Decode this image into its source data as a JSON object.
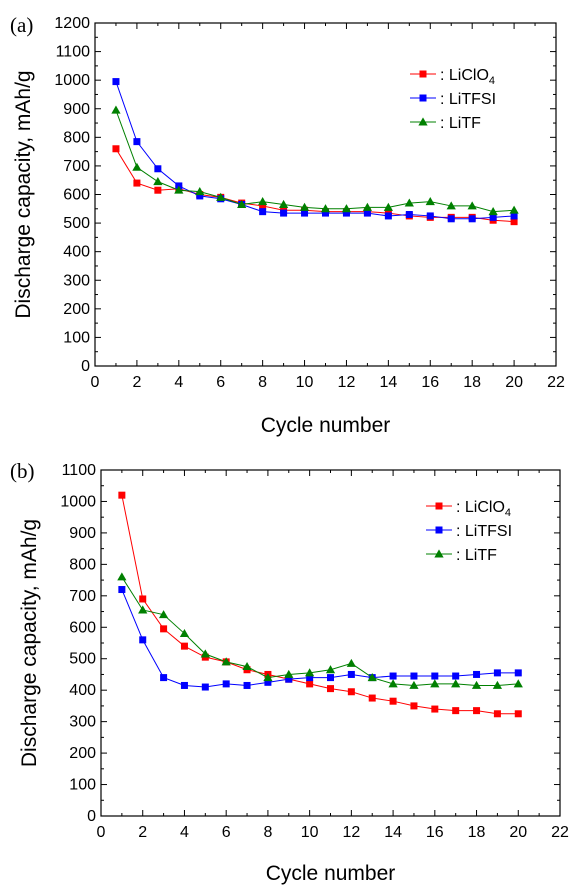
{
  "chart_data": [
    {
      "panel_label": "(a)",
      "type": "line",
      "xlabel": "Cycle number",
      "ylabel": "Discharge capacity, mAh/g",
      "xlim": [
        0,
        22
      ],
      "ylim": [
        0,
        1200
      ],
      "x_ticks": [
        0,
        2,
        4,
        6,
        8,
        10,
        12,
        14,
        16,
        18,
        20,
        22
      ],
      "y_ticks": [
        0,
        100,
        200,
        300,
        400,
        500,
        600,
        700,
        800,
        900,
        1000,
        1100,
        1200
      ],
      "grid": false,
      "legend_position": "top-right",
      "x": [
        1,
        2,
        3,
        4,
        5,
        6,
        7,
        8,
        9,
        10,
        11,
        12,
        13,
        14,
        15,
        16,
        17,
        18,
        19,
        20
      ],
      "series": [
        {
          "name": "LiClO4",
          "legend_text": "LiClO",
          "legend_subscript": "4",
          "color": "#ff0000",
          "marker": "square",
          "values": [
            760,
            640,
            615,
            620,
            600,
            590,
            570,
            560,
            545,
            545,
            540,
            540,
            540,
            535,
            525,
            520,
            520,
            520,
            510,
            505
          ]
        },
        {
          "name": "LiTFSI",
          "legend_text": "LiTFSI",
          "legend_subscript": "",
          "color": "#0000ff",
          "marker": "square",
          "values": [
            995,
            785,
            690,
            630,
            595,
            585,
            565,
            540,
            535,
            535,
            535,
            535,
            535,
            525,
            530,
            525,
            515,
            515,
            520,
            525
          ]
        },
        {
          "name": "LiTF",
          "legend_text": "LiTF",
          "legend_subscript": "",
          "color": "#008000",
          "marker": "triangle",
          "values": [
            895,
            695,
            645,
            615,
            610,
            590,
            565,
            575,
            565,
            555,
            550,
            550,
            555,
            555,
            570,
            575,
            560,
            560,
            540,
            545
          ]
        }
      ]
    },
    {
      "panel_label": "(b)",
      "type": "line",
      "xlabel": "Cycle number",
      "ylabel": "Discharge capacity, mAh/g",
      "xlim": [
        0,
        22
      ],
      "ylim": [
        0,
        1100
      ],
      "x_ticks": [
        0,
        2,
        4,
        6,
        8,
        10,
        12,
        14,
        16,
        18,
        20,
        22
      ],
      "y_ticks": [
        0,
        100,
        200,
        300,
        400,
        500,
        600,
        700,
        800,
        900,
        1000,
        1100
      ],
      "grid": false,
      "legend_position": "top-right",
      "x": [
        1,
        2,
        3,
        4,
        5,
        6,
        7,
        8,
        9,
        10,
        11,
        12,
        13,
        14,
        15,
        16,
        17,
        18,
        19,
        20
      ],
      "series": [
        {
          "name": "LiClO4",
          "legend_text": "LiClO",
          "legend_subscript": "4",
          "color": "#ff0000",
          "marker": "square",
          "values": [
            1020,
            690,
            595,
            540,
            505,
            490,
            465,
            450,
            435,
            420,
            405,
            395,
            375,
            365,
            350,
            340,
            335,
            335,
            325,
            325
          ]
        },
        {
          "name": "LiTFSI",
          "legend_text": "LiTFSI",
          "legend_subscript": "",
          "color": "#0000ff",
          "marker": "square",
          "values": [
            720,
            560,
            440,
            415,
            410,
            420,
            415,
            425,
            435,
            440,
            440,
            450,
            440,
            445,
            445,
            445,
            445,
            450,
            455,
            455
          ]
        },
        {
          "name": "LiTF",
          "legend_text": "LiTF",
          "legend_subscript": "",
          "color": "#008000",
          "marker": "triangle",
          "values": [
            760,
            655,
            640,
            580,
            515,
            490,
            475,
            440,
            450,
            455,
            465,
            485,
            440,
            420,
            415,
            420,
            420,
            415,
            415,
            420
          ]
        }
      ]
    }
  ]
}
